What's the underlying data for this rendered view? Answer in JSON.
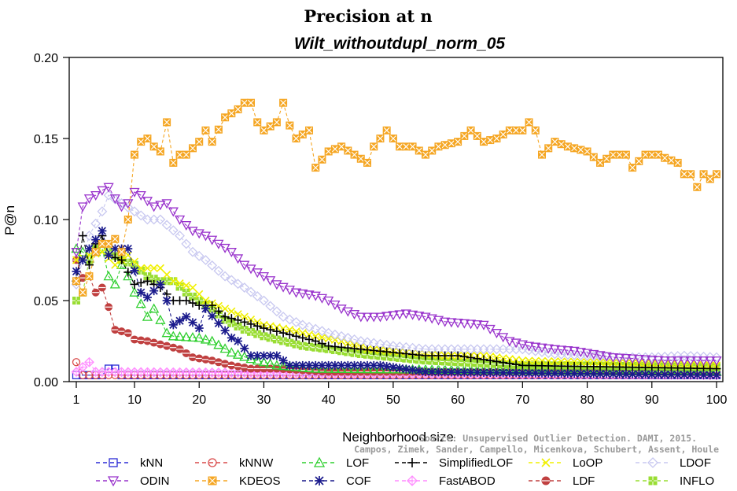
{
  "chart_data": {
    "type": "line",
    "title": "Precision at n",
    "subtitle": "Wilt_withoutdupl_norm_05",
    "xlabel": "Neighborhood size",
    "ylabel": "P@n",
    "xlim": [
      1,
      100
    ],
    "ylim": [
      0,
      0.2
    ],
    "x_ticks": [
      1,
      10,
      20,
      30,
      40,
      50,
      60,
      70,
      80,
      90,
      100
    ],
    "y_ticks": [
      0.0,
      0.05,
      0.1,
      0.15,
      0.2
    ],
    "y_tick_labels": [
      "0.00",
      "0.05",
      "0.10",
      "0.15",
      "0.20"
    ],
    "legend_position": "bottom",
    "credit": [
      "Source: Unsupervised Outlier Detection. DAMI, 2015.",
      "Campos, Zimek, Sander, Campello, Micenkova, Schubert, Assent, Houle"
    ],
    "series": [
      {
        "name": "kNN",
        "color": "#2b2bd6",
        "marker": "square",
        "anchors": [
          [
            1,
            0.004
          ],
          [
            5,
            0.004
          ],
          [
            6,
            0.008
          ],
          [
            7,
            0.008
          ],
          [
            8,
            0.004
          ],
          [
            100,
            0.004
          ]
        ]
      },
      {
        "name": "kNNW",
        "color": "#d94a4a",
        "marker": "circle",
        "anchors": [
          [
            1,
            0.012
          ],
          [
            2,
            0.004
          ],
          [
            100,
            0.004
          ]
        ]
      },
      {
        "name": "LOF",
        "color": "#2ecf2e",
        "marker": "triangle-up",
        "anchors": [
          [
            1,
            0.082
          ],
          [
            2,
            0.08
          ],
          [
            3,
            0.076
          ],
          [
            4,
            0.08
          ],
          [
            5,
            0.082
          ],
          [
            6,
            0.065
          ],
          [
            7,
            0.06
          ],
          [
            8,
            0.072
          ],
          [
            9,
            0.065
          ],
          [
            10,
            0.055
          ],
          [
            11,
            0.048
          ],
          [
            12,
            0.04
          ],
          [
            13,
            0.045
          ],
          [
            14,
            0.038
          ],
          [
            15,
            0.03
          ],
          [
            16,
            0.028
          ],
          [
            20,
            0.027
          ],
          [
            22,
            0.025
          ],
          [
            25,
            0.018
          ],
          [
            28,
            0.014
          ],
          [
            32,
            0.01
          ],
          [
            38,
            0.008
          ],
          [
            100,
            0.006
          ]
        ]
      },
      {
        "name": "COF",
        "color": "#1a1a8c",
        "marker": "asterisk",
        "anchors": [
          [
            1,
            0.068
          ],
          [
            3,
            0.082
          ],
          [
            5,
            0.093
          ],
          [
            6,
            0.078
          ],
          [
            7,
            0.082
          ],
          [
            9,
            0.082
          ],
          [
            11,
            0.055
          ],
          [
            12,
            0.052
          ],
          [
            14,
            0.06
          ],
          [
            15,
            0.05
          ],
          [
            16,
            0.035
          ],
          [
            18,
            0.04
          ],
          [
            20,
            0.033
          ],
          [
            21,
            0.045
          ],
          [
            23,
            0.036
          ],
          [
            25,
            0.027
          ],
          [
            26,
            0.025
          ],
          [
            28,
            0.016
          ],
          [
            32,
            0.016
          ],
          [
            34,
            0.01
          ],
          [
            40,
            0.01
          ],
          [
            48,
            0.01
          ],
          [
            55,
            0.006
          ],
          [
            100,
            0.004
          ]
        ]
      },
      {
        "name": "SimplifiedLOF",
        "color": "#000000",
        "marker": "plus",
        "anchors": [
          [
            1,
            0.062
          ],
          [
            2,
            0.09
          ],
          [
            3,
            0.072
          ],
          [
            4,
            0.085
          ],
          [
            5,
            0.09
          ],
          [
            6,
            0.078
          ],
          [
            8,
            0.075
          ],
          [
            10,
            0.06
          ],
          [
            12,
            0.062
          ],
          [
            14,
            0.058
          ],
          [
            16,
            0.05
          ],
          [
            18,
            0.05
          ],
          [
            20,
            0.047
          ],
          [
            22,
            0.047
          ],
          [
            24,
            0.04
          ],
          [
            26,
            0.038
          ],
          [
            30,
            0.033
          ],
          [
            33,
            0.03
          ],
          [
            35,
            0.028
          ],
          [
            38,
            0.025
          ],
          [
            40,
            0.022
          ],
          [
            45,
            0.02
          ],
          [
            50,
            0.018
          ],
          [
            55,
            0.016
          ],
          [
            60,
            0.016
          ],
          [
            65,
            0.013
          ],
          [
            70,
            0.01
          ],
          [
            100,
            0.008
          ]
        ]
      },
      {
        "name": "FastABOD",
        "color": "#ff8cff",
        "marker": "diamond-plus",
        "anchors": [
          [
            1,
            0.006
          ],
          [
            3,
            0.012
          ],
          [
            4,
            0.006
          ],
          [
            100,
            0.004
          ]
        ]
      },
      {
        "name": "LoOP",
        "color": "#f0f000",
        "marker": "cross",
        "anchors": [
          [
            1,
            0.075
          ],
          [
            3,
            0.078
          ],
          [
            5,
            0.08
          ],
          [
            7,
            0.072
          ],
          [
            9,
            0.078
          ],
          [
            11,
            0.07
          ],
          [
            14,
            0.07
          ],
          [
            16,
            0.062
          ],
          [
            19,
            0.058
          ],
          [
            21,
            0.05
          ],
          [
            24,
            0.045
          ],
          [
            27,
            0.04
          ],
          [
            30,
            0.035
          ],
          [
            34,
            0.032
          ],
          [
            38,
            0.028
          ],
          [
            42,
            0.025
          ],
          [
            46,
            0.02
          ],
          [
            52,
            0.018
          ],
          [
            58,
            0.016
          ],
          [
            64,
            0.016
          ],
          [
            70,
            0.013
          ],
          [
            80,
            0.012
          ],
          [
            90,
            0.011
          ],
          [
            100,
            0.01
          ]
        ]
      },
      {
        "name": "LDOF",
        "color": "#c8c8f0",
        "marker": "diamond",
        "anchors": [
          [
            1,
            0.06
          ],
          [
            3,
            0.09
          ],
          [
            5,
            0.105
          ],
          [
            6,
            0.115
          ],
          [
            8,
            0.11
          ],
          [
            10,
            0.105
          ],
          [
            12,
            0.1
          ],
          [
            14,
            0.1
          ],
          [
            17,
            0.09
          ],
          [
            19,
            0.08
          ],
          [
            21,
            0.075
          ],
          [
            24,
            0.065
          ],
          [
            27,
            0.058
          ],
          [
            30,
            0.05
          ],
          [
            33,
            0.04
          ],
          [
            36,
            0.035
          ],
          [
            40,
            0.03
          ],
          [
            45,
            0.025
          ],
          [
            50,
            0.022
          ],
          [
            55,
            0.02
          ],
          [
            60,
            0.02
          ],
          [
            65,
            0.02
          ],
          [
            70,
            0.02
          ],
          [
            75,
            0.017
          ],
          [
            80,
            0.016
          ],
          [
            85,
            0.015
          ],
          [
            90,
            0.015
          ],
          [
            95,
            0.016
          ],
          [
            100,
            0.015
          ]
        ]
      },
      {
        "name": "ODIN",
        "color": "#9933cc",
        "marker": "triangle-down",
        "anchors": [
          [
            1,
            0.08
          ],
          [
            2,
            0.108
          ],
          [
            3,
            0.113
          ],
          [
            4,
            0.115
          ],
          [
            5,
            0.118
          ],
          [
            6,
            0.12
          ],
          [
            7,
            0.113
          ],
          [
            8,
            0.108
          ],
          [
            9,
            0.11
          ],
          [
            10,
            0.117
          ],
          [
            11,
            0.115
          ],
          [
            13,
            0.108
          ],
          [
            15,
            0.11
          ],
          [
            17,
            0.1
          ],
          [
            19,
            0.093
          ],
          [
            21,
            0.09
          ],
          [
            23,
            0.085
          ],
          [
            25,
            0.08
          ],
          [
            27,
            0.072
          ],
          [
            30,
            0.065
          ],
          [
            32,
            0.06
          ],
          [
            35,
            0.055
          ],
          [
            38,
            0.053
          ],
          [
            40,
            0.05
          ],
          [
            42,
            0.045
          ],
          [
            45,
            0.04
          ],
          [
            48,
            0.04
          ],
          [
            52,
            0.042
          ],
          [
            55,
            0.04
          ],
          [
            58,
            0.037
          ],
          [
            61,
            0.036
          ],
          [
            64,
            0.035
          ],
          [
            66,
            0.03
          ],
          [
            68,
            0.025
          ],
          [
            71,
            0.022
          ],
          [
            75,
            0.02
          ],
          [
            78,
            0.019
          ],
          [
            81,
            0.017
          ],
          [
            84,
            0.015
          ],
          [
            88,
            0.014
          ],
          [
            92,
            0.013
          ],
          [
            95,
            0.013
          ],
          [
            100,
            0.013
          ]
        ]
      },
      {
        "name": "KDEOS",
        "color": "#f5a623",
        "marker": "boxed-x",
        "anchors": [
          [
            1,
            0.062
          ],
          [
            2,
            0.055
          ],
          [
            3,
            0.065
          ],
          [
            4,
            0.08
          ],
          [
            5,
            0.085
          ],
          [
            6,
            0.085
          ],
          [
            7,
            0.088
          ],
          [
            8,
            0.08
          ],
          [
            9,
            0.1
          ],
          [
            10,
            0.14
          ],
          [
            11,
            0.148
          ],
          [
            12,
            0.15
          ],
          [
            13,
            0.145
          ],
          [
            14,
            0.142
          ],
          [
            15,
            0.16
          ],
          [
            16,
            0.135
          ],
          [
            17,
            0.14
          ],
          [
            18,
            0.14
          ],
          [
            20,
            0.148
          ],
          [
            21,
            0.155
          ],
          [
            22,
            0.148
          ],
          [
            24,
            0.163
          ],
          [
            26,
            0.168
          ],
          [
            27,
            0.172
          ],
          [
            28,
            0.172
          ],
          [
            29,
            0.16
          ],
          [
            30,
            0.155
          ],
          [
            32,
            0.16
          ],
          [
            33,
            0.172
          ],
          [
            34,
            0.158
          ],
          [
            35,
            0.15
          ],
          [
            37,
            0.155
          ],
          [
            38,
            0.132
          ],
          [
            40,
            0.142
          ],
          [
            42,
            0.145
          ],
          [
            44,
            0.14
          ],
          [
            46,
            0.135
          ],
          [
            47,
            0.145
          ],
          [
            49,
            0.155
          ],
          [
            51,
            0.145
          ],
          [
            53,
            0.145
          ],
          [
            55,
            0.14
          ],
          [
            57,
            0.145
          ],
          [
            60,
            0.148
          ],
          [
            62,
            0.155
          ],
          [
            64,
            0.148
          ],
          [
            66,
            0.15
          ],
          [
            68,
            0.155
          ],
          [
            70,
            0.155
          ],
          [
            71,
            0.16
          ],
          [
            72,
            0.155
          ],
          [
            73,
            0.14
          ],
          [
            75,
            0.148
          ],
          [
            77,
            0.145
          ],
          [
            80,
            0.142
          ],
          [
            82,
            0.135
          ],
          [
            84,
            0.14
          ],
          [
            86,
            0.14
          ],
          [
            87,
            0.132
          ],
          [
            89,
            0.14
          ],
          [
            91,
            0.14
          ],
          [
            92,
            0.138
          ],
          [
            94,
            0.135
          ],
          [
            95,
            0.128
          ],
          [
            96,
            0.128
          ],
          [
            97,
            0.12
          ],
          [
            98,
            0.128
          ],
          [
            99,
            0.125
          ],
          [
            100,
            0.128
          ]
        ]
      },
      {
        "name": "LDF",
        "color": "#c04040",
        "marker": "circle-bar",
        "anchors": [
          [
            1,
            0.075
          ],
          [
            2,
            0.064
          ],
          [
            3,
            0.065
          ],
          [
            4,
            0.055
          ],
          [
            5,
            0.058
          ],
          [
            6,
            0.046
          ],
          [
            7,
            0.032
          ],
          [
            9,
            0.03
          ],
          [
            10,
            0.026
          ],
          [
            12,
            0.025
          ],
          [
            14,
            0.023
          ],
          [
            17,
            0.02
          ],
          [
            19,
            0.015
          ],
          [
            22,
            0.013
          ],
          [
            25,
            0.01
          ],
          [
            28,
            0.008
          ],
          [
            32,
            0.008
          ],
          [
            40,
            0.006
          ],
          [
            100,
            0.006
          ]
        ]
      },
      {
        "name": "INFLO",
        "color": "#99dd33",
        "marker": "star",
        "anchors": [
          [
            1,
            0.05
          ],
          [
            2,
            0.055
          ],
          [
            3,
            0.075
          ],
          [
            4,
            0.082
          ],
          [
            5,
            0.085
          ],
          [
            6,
            0.08
          ],
          [
            8,
            0.075
          ],
          [
            10,
            0.072
          ],
          [
            12,
            0.065
          ],
          [
            14,
            0.062
          ],
          [
            16,
            0.062
          ],
          [
            18,
            0.055
          ],
          [
            20,
            0.05
          ],
          [
            22,
            0.045
          ],
          [
            24,
            0.038
          ],
          [
            27,
            0.032
          ],
          [
            30,
            0.028
          ],
          [
            33,
            0.025
          ],
          [
            36,
            0.022
          ],
          [
            40,
            0.02
          ],
          [
            45,
            0.017
          ],
          [
            50,
            0.015
          ],
          [
            55,
            0.013
          ],
          [
            60,
            0.012
          ],
          [
            65,
            0.011
          ],
          [
            70,
            0.01
          ],
          [
            80,
            0.01
          ],
          [
            100,
            0.009
          ]
        ]
      }
    ]
  }
}
